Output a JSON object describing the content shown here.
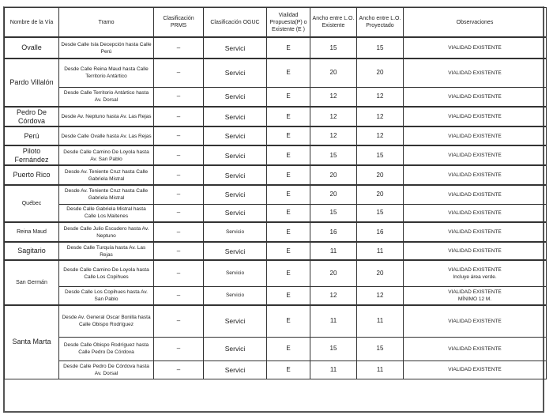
{
  "headers": [
    "Nombre de la Vía",
    "Tramo",
    "Clasificación PRMS",
    "Clasificación OGUC",
    "Vialidad Propuesta(P) o Existente (E )",
    "Ancho entre L.O. Existente",
    "Ancho entre L.O. Proyectado",
    "Observaciones"
  ],
  "vias": [
    {
      "name": "Ovalle",
      "tramos": [
        {
          "tramo": "Desde Calle Isla Decepción hasta Calle Perú",
          "prms": "–",
          "oguc": "Servici",
          "ve": "E",
          "ancho_e": "15",
          "ancho_p": "15",
          "obs": "VIALIDAD EXISTENTE"
        }
      ]
    },
    {
      "name": "Pardo Villalón",
      "tramos": [
        {
          "tramo": "Desde Calle Reina Maud hasta Calle Territorio Antártico",
          "prms": "–",
          "oguc": "Servici",
          "ve": "E",
          "ancho_e": "20",
          "ancho_p": "20",
          "obs": "VIALIDAD EXISTENTE"
        },
        {
          "tramo": "Desde Calle Territorio Antártico hasta Av. Dorsal",
          "prms": "–",
          "oguc": "Servici",
          "ve": "E",
          "ancho_e": "12",
          "ancho_p": "12",
          "obs": "VIALIDAD EXISTENTE"
        }
      ]
    },
    {
      "name": "Pedro De Córdova",
      "tramos": [
        {
          "tramo": "Desde Av. Neptuno hasta Av. Las Rejas",
          "prms": "–",
          "oguc": "Servici",
          "ve": "E",
          "ancho_e": "12",
          "ancho_p": "12",
          "obs": "VIALIDAD EXISTENTE"
        }
      ]
    },
    {
      "name": "Perú",
      "tramos": [
        {
          "tramo": "Desde Calle Ovalle hasta Av. Las Rejas",
          "prms": "–",
          "oguc": "Servici",
          "ve": "E",
          "ancho_e": "12",
          "ancho_p": "12",
          "obs": "VIALIDAD EXISTENTE"
        }
      ]
    },
    {
      "name": "Piloto Fernández",
      "tramos": [
        {
          "tramo": "Desde Calle Camino De Loyola hasta Av. San Pablo",
          "prms": "–",
          "oguc": "Servici",
          "ve": "E",
          "ancho_e": "15",
          "ancho_p": "15",
          "obs": "VIALIDAD EXISTENTE"
        }
      ]
    },
    {
      "name": "Puerto Rico",
      "tramos": [
        {
          "tramo": "Desde Av. Teniente Cruz hasta Calle Gabriela Mistral",
          "prms": "–",
          "oguc": "Servici",
          "ve": "E",
          "ancho_e": "20",
          "ancho_p": "20",
          "obs": "VIALIDAD EXISTENTE"
        }
      ]
    },
    {
      "name": "Québec",
      "small": true,
      "tramos": [
        {
          "tramo": "Desde Av. Teniente Cruz hasta Calle Gabriela Mistral",
          "prms": "–",
          "oguc": "Servici",
          "ve": "E",
          "ancho_e": "20",
          "ancho_p": "20",
          "obs": "VIALIDAD EXISTENTE"
        },
        {
          "tramo": "Desde Calle Gabriela Mistral hasta Calle Los Maitenes",
          "prms": "–",
          "oguc": "Servici",
          "ve": "E",
          "ancho_e": "15",
          "ancho_p": "15",
          "obs": "VIALIDAD EXISTENTE"
        }
      ]
    },
    {
      "name": "Reina Maud",
      "small": true,
      "tramos": [
        {
          "tramo": "Desde Calle Julio Escudero hasta Av. Neptuno",
          "prms": "–",
          "oguc": "Servicio",
          "ve": "E",
          "ancho_e": "16",
          "ancho_p": "16",
          "obs": "VIALIDAD EXISTENTE",
          "small": true
        }
      ]
    },
    {
      "name": "Sagitario",
      "tramos": [
        {
          "tramo": "Desde Calle Turquía hasta Av. Las Rejas",
          "prms": "–",
          "oguc": "Servici",
          "ve": "E",
          "ancho_e": "11",
          "ancho_p": "11",
          "obs": "VIALIDAD EXISTENTE"
        }
      ]
    },
    {
      "name": "San Germán",
      "small": true,
      "tramos": [
        {
          "tramo": "Desde Calle Camino De Loyola hasta Calle Los Copihues",
          "prms": "–",
          "oguc": "Servicio",
          "ve": "E",
          "ancho_e": "20",
          "ancho_p": "20",
          "obs": "VIALIDAD EXISTENTE",
          "obs2": "Incluye área verde.",
          "small": true
        },
        {
          "tramo": "Desde Calle Los Copihues hasta Av. San Pablo",
          "prms": "–",
          "oguc": "Servicio",
          "ve": "E",
          "ancho_e": "12",
          "ancho_p": "12",
          "obs": "VIALIDAD EXISTENTE",
          "obs2": "MÍNIMO 12 M.",
          "small": true
        }
      ]
    },
    {
      "name": "Santa Marta",
      "tramos": [
        {
          "tramo": "Desde Av. General Oscar Bonilla hasta Calle Obispo Rodríguez",
          "prms": "–",
          "oguc": "Servici",
          "ve": "E",
          "ancho_e": "11",
          "ancho_p": "11",
          "obs": "VIALIDAD EXISTENTE"
        },
        {
          "tramo": "Desde Calle Obispo Rodríguez hasta Calle Pedro De Córdova",
          "prms": "–",
          "oguc": "Servici",
          "ve": "E",
          "ancho_e": "15",
          "ancho_p": "15",
          "obs": "VIALIDAD EXISTENTE"
        },
        {
          "tramo": "Desde Calle Pedro De Córdova hasta Av. Dorsal",
          "prms": "–",
          "oguc": "Servici",
          "ve": "E",
          "ancho_e": "11",
          "ancho_p": "11",
          "obs": "VIALIDAD EXISTENTE"
        }
      ]
    }
  ]
}
